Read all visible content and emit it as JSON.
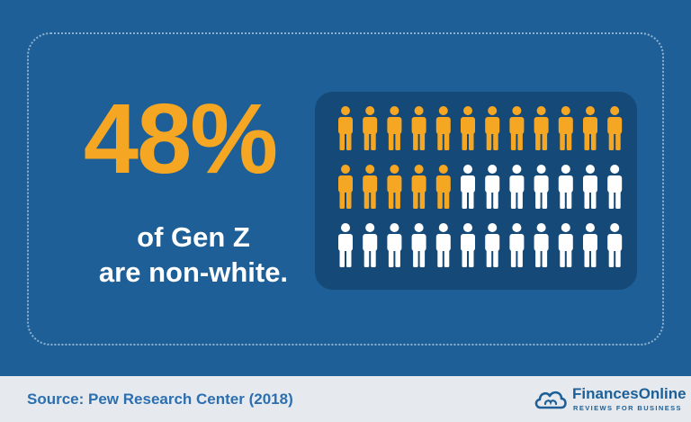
{
  "infographic": {
    "stat": "48%",
    "caption_line1": "of Gen Z",
    "caption_line2": "are non-white."
  },
  "pictogram": {
    "rows": 3,
    "columns": 12,
    "highlighted_count": 17,
    "total_count": 36,
    "highlight_color": "#f5a623",
    "base_color": "#ffffff",
    "icon": "person-icon"
  },
  "footer": {
    "source": "Source: Pew Research Center (2018)",
    "brand_name": "FinancesOnline",
    "brand_tagline": "REVIEWS FOR BUSINESS",
    "brand_icon": "cloud-logo-icon"
  },
  "colors": {
    "background": "#1d5f96",
    "panel": "#154a78",
    "accent": "#f5a623",
    "footer": "#e6eaee"
  }
}
